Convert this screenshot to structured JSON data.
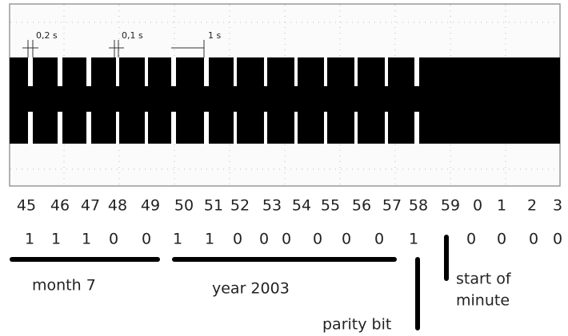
{
  "scope": {
    "annotations": [
      "0,2 s",
      "0,1 s",
      "1 s"
    ]
  },
  "seconds": [
    "45",
    "46",
    "47",
    "48",
    "49",
    "50",
    "51",
    "52",
    "53",
    "54",
    "55",
    "56",
    "57",
    "58",
    "59",
    "0",
    "1",
    "2",
    "3"
  ],
  "bits": [
    "1",
    "1",
    "1",
    "0",
    "0",
    "1",
    "1",
    "0",
    "0",
    "0",
    "0",
    "0",
    "0",
    "1",
    null,
    "0",
    "0",
    "0",
    "0"
  ],
  "labels": {
    "month": "month 7",
    "year": "year 2003",
    "parity": "parity bit",
    "minute": [
      "start of",
      "minute"
    ]
  }
}
